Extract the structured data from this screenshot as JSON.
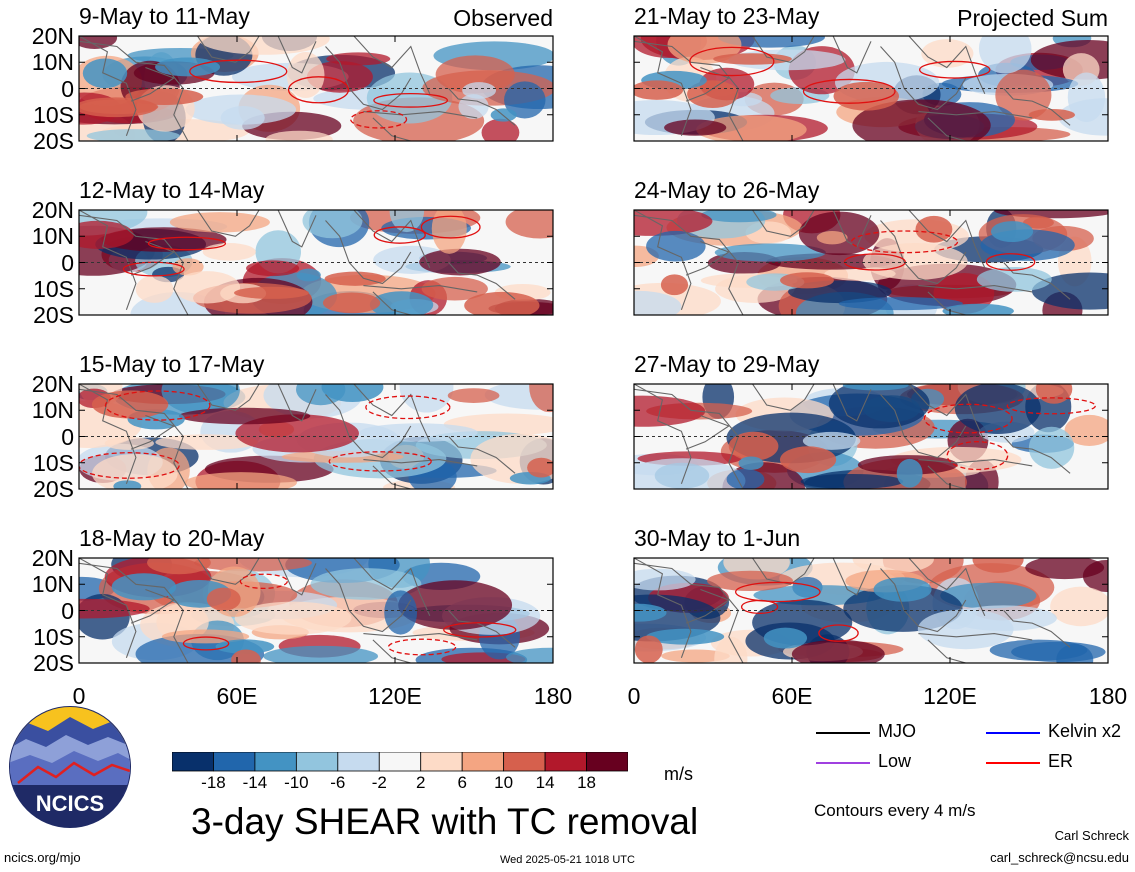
{
  "panels_left": [
    {
      "title": "9-May to 11-May",
      "label": "Observed"
    },
    {
      "title": "12-May to 14-May",
      "label": ""
    },
    {
      "title": "15-May to 17-May",
      "label": ""
    },
    {
      "title": "18-May to 20-May",
      "label": ""
    }
  ],
  "panels_right": [
    {
      "title": "21-May to 23-May",
      "label": "Projected Sum"
    },
    {
      "title": "24-May to 26-May",
      "label": ""
    },
    {
      "title": "27-May to 29-May",
      "label": ""
    },
    {
      "title": "30-May to 1-Jun",
      "label": ""
    }
  ],
  "lat_ticks": [
    "20N",
    "10N",
    "0",
    "10S",
    "20S"
  ],
  "lon_ticks": [
    "0",
    "60E",
    "120E",
    "180"
  ],
  "colorbar": {
    "colors": [
      "#08306b",
      "#2166ac",
      "#4393c3",
      "#92c5de",
      "#c6dbef",
      "#f7f7f7",
      "#fddbc7",
      "#f4a582",
      "#d6604d",
      "#b2182b",
      "#67001f"
    ],
    "labels": [
      "-18",
      "-14",
      "-10",
      "-6",
      "-2",
      "2",
      "6",
      "10",
      "14",
      "18"
    ],
    "unit": "m/s"
  },
  "legend": {
    "items": [
      {
        "label": "MJO",
        "color": "#000000"
      },
      {
        "label": "Kelvin x2",
        "color": "#0000ff"
      },
      {
        "label": "Low",
        "color": "#a040e0"
      },
      {
        "label": "ER",
        "color": "#ff0000"
      }
    ],
    "contour_note": "Contours every 4 m/s"
  },
  "title": "3-day SHEAR with TC removal",
  "logo_text": "NCICS",
  "footer": {
    "url": "ncics.org/mjo",
    "timestamp": "Wed 2025-05-21 1018 UTC",
    "author": "Carl Schreck",
    "email": "carl_schreck@ncsu.edu"
  }
}
